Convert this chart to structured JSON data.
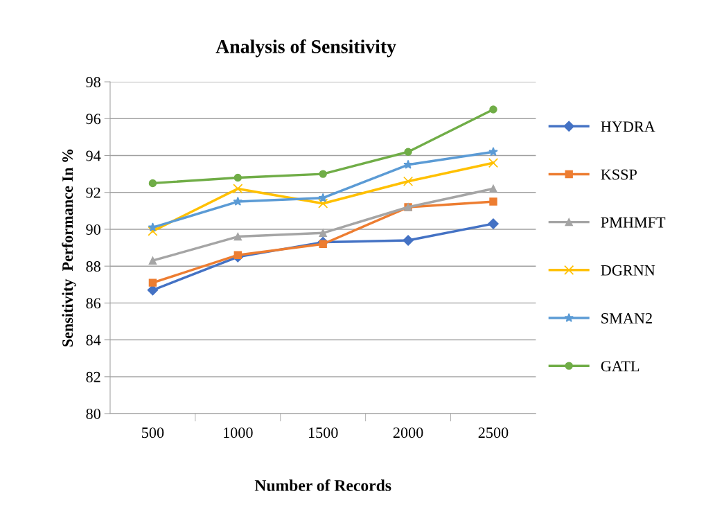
{
  "chart_data": {
    "type": "line",
    "title": "Analysis of Sensitivity",
    "xlabel": "Number of Records",
    "ylabel": "Sensitivity  Performance In %",
    "categories": [
      "500",
      "1000",
      "1500",
      "2000",
      "2500"
    ],
    "series": [
      {
        "name": "HYDRA",
        "color": "#4472c4",
        "marker": "diamond",
        "values": [
          86.7,
          88.5,
          89.3,
          89.4,
          90.3
        ]
      },
      {
        "name": "KSSP",
        "color": "#ed7d31",
        "marker": "square",
        "values": [
          87.1,
          88.6,
          89.2,
          91.2,
          91.5
        ]
      },
      {
        "name": "PMHMFT",
        "color": "#a5a5a5",
        "marker": "triangle",
        "values": [
          88.3,
          89.6,
          89.8,
          91.2,
          92.2
        ]
      },
      {
        "name": "DGRNN",
        "color": "#ffc000",
        "marker": "cross",
        "values": [
          89.9,
          92.2,
          91.4,
          92.6,
          93.6
        ]
      },
      {
        "name": "SMAN2",
        "color": "#5b9bd5",
        "marker": "star",
        "values": [
          90.1,
          91.5,
          91.7,
          93.5,
          94.2
        ]
      },
      {
        "name": "GATL",
        "color": "#70ad47",
        "marker": "circle",
        "values": [
          92.5,
          92.8,
          93.0,
          94.2,
          96.5
        ]
      }
    ],
    "ylim": [
      80,
      98
    ],
    "yticks": [
      80,
      82,
      84,
      86,
      88,
      90,
      92,
      94,
      96,
      98
    ],
    "grid": "y",
    "legend": "right",
    "line_style": "solid"
  }
}
